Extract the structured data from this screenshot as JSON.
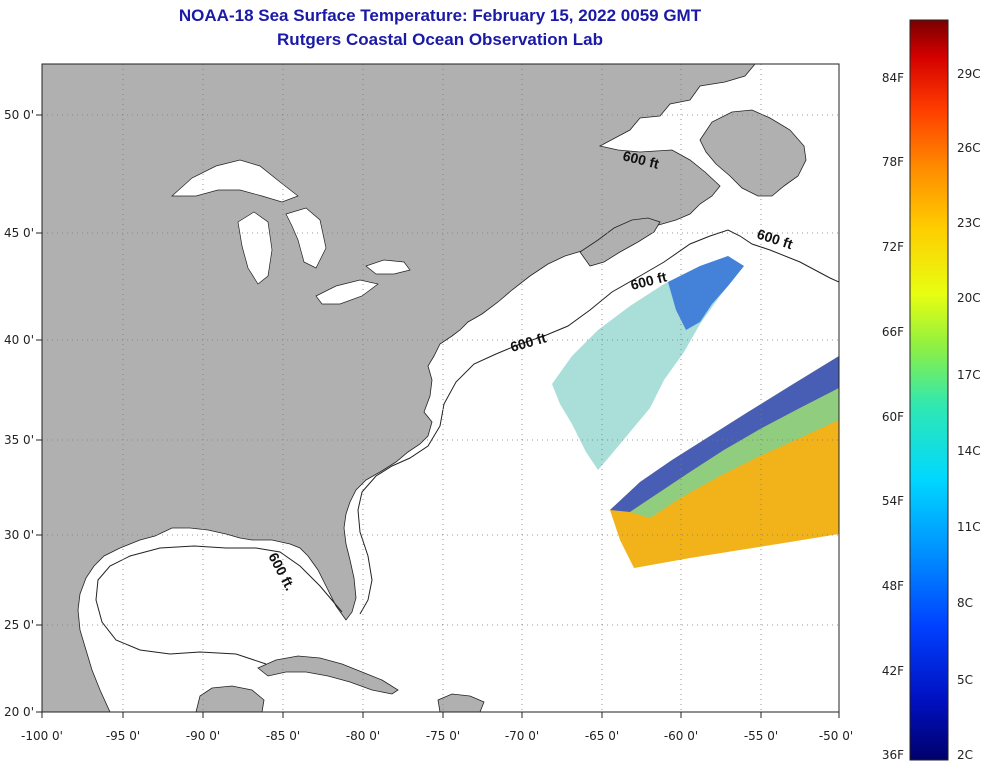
{
  "title": {
    "line1": "NOAA-18 Sea Surface Temperature:  February 15, 2022 0059 GMT",
    "line2": "Rutgers Coastal Ocean Observation Lab"
  },
  "axes": {
    "lon_ticks": [
      "-100 0'",
      "-95 0'",
      "-90 0'",
      "-85 0'",
      "-80 0'",
      "-75 0'",
      "-70 0'",
      "-65 0'",
      "-60 0'",
      "-55 0'",
      "-50 0'"
    ],
    "lat_ticks": [
      "50 0'",
      "45 0'",
      "40 0'",
      "35 0'",
      "30 0'",
      "25 0'",
      "20 0'"
    ]
  },
  "isobath": {
    "label": "600 ft",
    "label_dot": "600 ft."
  },
  "colorbar": {
    "fahrenheit": [
      "84F",
      "78F",
      "72F",
      "66F",
      "60F",
      "54F",
      "48F",
      "42F",
      "36F"
    ],
    "celsius": [
      "29C",
      "26C",
      "23C",
      "20C",
      "17C",
      "14C",
      "11C",
      "8C",
      "5C",
      "2C"
    ],
    "colors": [
      "#7a0000",
      "#d40000",
      "#ff3c00",
      "#ff8c00",
      "#ffcc00",
      "#e8ff10",
      "#90f040",
      "#30e8b0",
      "#00d8ff",
      "#0090ff",
      "#0040ff",
      "#0010c0",
      "#00006a"
    ]
  },
  "colors": {
    "land": "#b0b0b0",
    "title": "#1a1aa6",
    "grid": "#7a7a7a"
  }
}
